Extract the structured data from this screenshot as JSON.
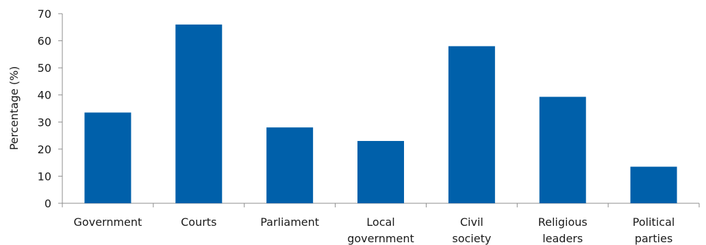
{
  "chart_data": {
    "type": "bar",
    "title": "",
    "xlabel": "",
    "ylabel": "Percentage (%)",
    "categories": [
      [
        "Government"
      ],
      [
        "Courts"
      ],
      [
        "Parliament"
      ],
      [
        "Local",
        "government"
      ],
      [
        "Civil",
        "society"
      ],
      [
        "Religious",
        "leaders"
      ],
      [
        "Political",
        "parties"
      ]
    ],
    "values": [
      33.5,
      66,
      28,
      23,
      58,
      39.3,
      13.5
    ],
    "ylim": [
      0,
      70
    ],
    "yticks": [
      "0",
      "10",
      "20",
      "30",
      "40",
      "50",
      "60",
      "70"
    ],
    "grid": false,
    "bar_color": "#0060AA"
  }
}
